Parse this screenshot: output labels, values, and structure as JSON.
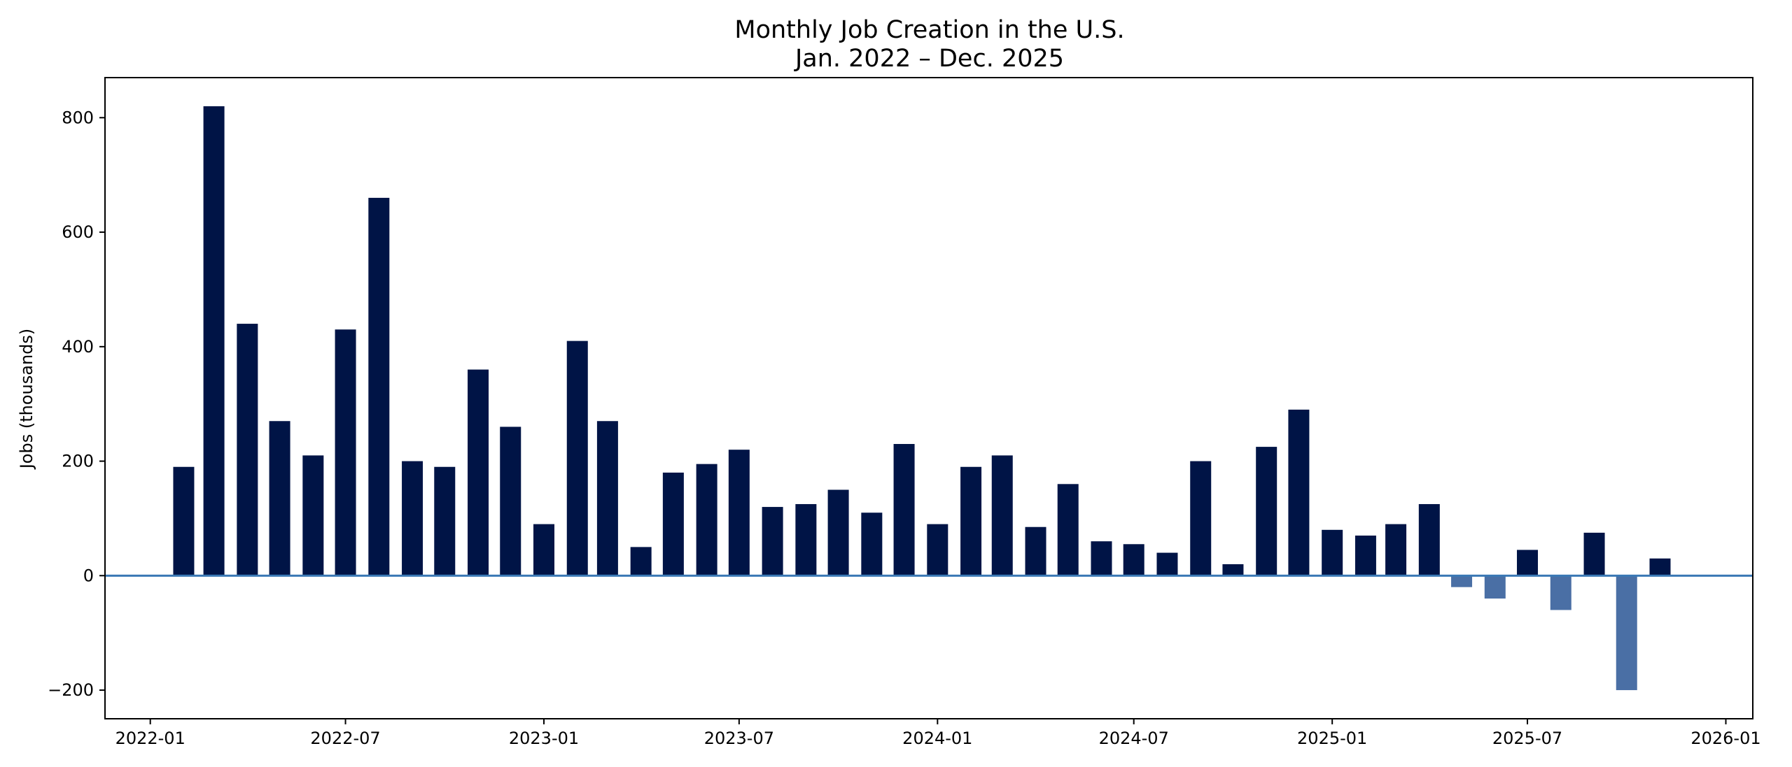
{
  "chart_data": {
    "type": "bar",
    "title": "Monthly Job Creation in the U.S.",
    "subtitle": "Jan. 2022 – Dec. 2025",
    "xlabel": "",
    "ylabel": "Jobs (thousands)",
    "x_type": "date",
    "xlim": [
      "2021-11-20",
      "2026-01-26"
    ],
    "ylim": [
      -250,
      870
    ],
    "grid": false,
    "legend": "none",
    "zero_line_color": "#3a78b5",
    "colors": {
      "positive": "#001446",
      "negative": "#4a6fa5"
    },
    "x_ticks": [
      "2022-01",
      "2022-07",
      "2023-01",
      "2023-07",
      "2024-01",
      "2024-07",
      "2025-01",
      "2025-07",
      "2026-01"
    ],
    "y_ticks": [
      -200,
      0,
      200,
      400,
      600,
      800
    ],
    "bars": [
      {
        "date": "2022-02",
        "value": 190
      },
      {
        "date": "2022-03",
        "value": 820
      },
      {
        "date": "2022-04",
        "value": 440
      },
      {
        "date": "2022-05",
        "value": 270
      },
      {
        "date": "2022-06",
        "value": 210
      },
      {
        "date": "2022-07",
        "value": 430
      },
      {
        "date": "2022-08",
        "value": 660
      },
      {
        "date": "2022-09",
        "value": 200
      },
      {
        "date": "2022-10",
        "value": 190
      },
      {
        "date": "2022-11",
        "value": 360
      },
      {
        "date": "2022-12",
        "value": 260
      },
      {
        "date": "2023-01",
        "value": 90
      },
      {
        "date": "2023-02",
        "value": 410
      },
      {
        "date": "2023-03",
        "value": 270
      },
      {
        "date": "2023-04",
        "value": 50
      },
      {
        "date": "2023-05",
        "value": 180
      },
      {
        "date": "2023-06",
        "value": 195
      },
      {
        "date": "2023-07",
        "value": 220
      },
      {
        "date": "2023-08",
        "value": 120
      },
      {
        "date": "2023-09",
        "value": 125
      },
      {
        "date": "2023-10",
        "value": 150
      },
      {
        "date": "2023-11",
        "value": 110
      },
      {
        "date": "2023-12",
        "value": 230
      },
      {
        "date": "2024-01",
        "value": 90
      },
      {
        "date": "2024-02",
        "value": 190
      },
      {
        "date": "2024-03",
        "value": 210
      },
      {
        "date": "2024-04",
        "value": 85
      },
      {
        "date": "2024-05",
        "value": 160
      },
      {
        "date": "2024-06",
        "value": 60
      },
      {
        "date": "2024-07",
        "value": 55
      },
      {
        "date": "2024-08",
        "value": 40
      },
      {
        "date": "2024-09",
        "value": 200
      },
      {
        "date": "2024-10",
        "value": 20
      },
      {
        "date": "2024-11",
        "value": 225
      },
      {
        "date": "2024-12",
        "value": 290
      },
      {
        "date": "2025-01",
        "value": 80
      },
      {
        "date": "2025-02",
        "value": 70
      },
      {
        "date": "2025-03",
        "value": 90
      },
      {
        "date": "2025-04",
        "value": 125
      },
      {
        "date": "2025-05",
        "value": -20
      },
      {
        "date": "2025-06",
        "value": -40
      },
      {
        "date": "2025-07",
        "value": 45
      },
      {
        "date": "2025-08",
        "value": -60
      },
      {
        "date": "2025-09",
        "value": 75
      },
      {
        "date": "2025-10",
        "value": -200
      },
      {
        "date": "2025-11",
        "value": 30
      }
    ]
  }
}
